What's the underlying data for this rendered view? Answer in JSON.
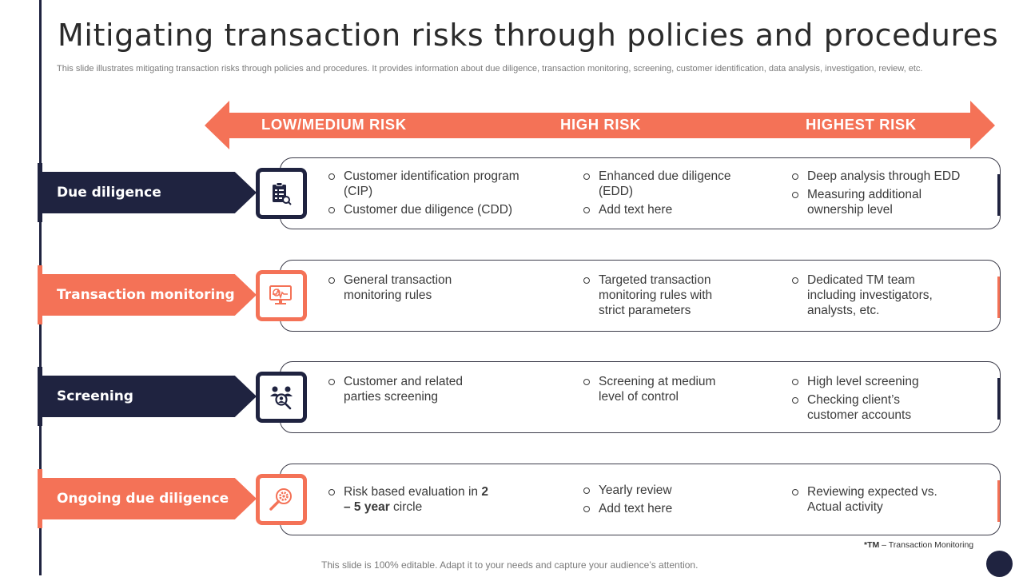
{
  "title": "Mitigating transaction risks through policies and procedures",
  "subtitle": "This slide illustrates mitigating transaction risks through policies and procedures. It provides information about due diligence, transaction monitoring, screening, customer identification, data analysis, investigation, review, etc.",
  "colors": {
    "navy": "#1f2340",
    "coral": "#f47257"
  },
  "risk_levels": [
    "LOW/MEDIUM RISK",
    "HIGH RISK",
    "HIGHEST RISK"
  ],
  "rows": [
    {
      "label": "Due diligence",
      "icon": "clipboard-checklist-icon",
      "theme": "navy",
      "low": [
        "Customer identification program (CIP)",
        "Customer due diligence (CDD)"
      ],
      "high": [
        "Enhanced due diligence (EDD)",
        "Add text here"
      ],
      "highest": [
        "Deep analysis through EDD",
        "Measuring additional ownership level"
      ]
    },
    {
      "label": "Transaction monitoring",
      "icon": "monitor-analytics-icon",
      "theme": "coral",
      "low": [
        "General transaction monitoring rules"
      ],
      "high": [
        "Targeted transaction monitoring rules with strict parameters"
      ],
      "highest": [
        "Dedicated TM team including investigators, analysts, etc."
      ]
    },
    {
      "label": "Screening",
      "icon": "people-search-icon",
      "theme": "navy",
      "low": [
        "Customer and related parties screening"
      ],
      "high": [
        "Screening at medium level of control"
      ],
      "highest": [
        "High level screening",
        "Checking client’s customer accounts"
      ]
    },
    {
      "label": "Ongoing due diligence",
      "icon": "gear-magnifier-icon",
      "theme": "coral",
      "low_pre": "Risk based evaluation in ",
      "low_bold": "2 – 5 year",
      "low_post": " circle",
      "high": [
        "Yearly review",
        "Add text here"
      ],
      "highest": [
        "Reviewing expected vs. Actual activity"
      ]
    }
  ],
  "footnote_abbr": "*TM",
  "footnote_rest": " – Transaction Monitoring",
  "footer": "This slide is 100% editable. Adapt it to your needs and capture your audience’s attention."
}
